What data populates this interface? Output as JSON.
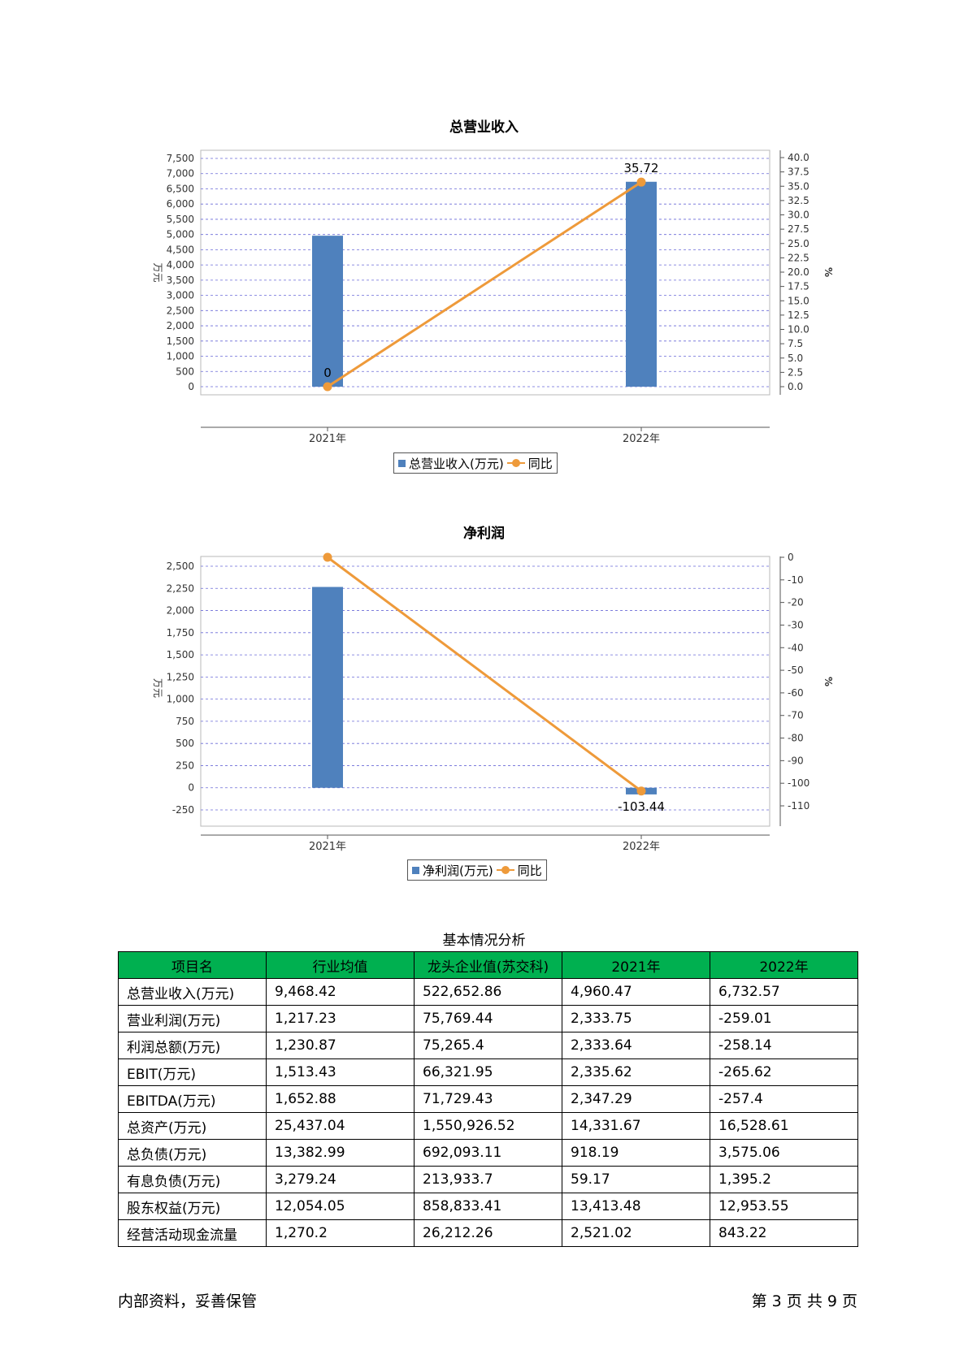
{
  "charts": [
    {
      "title": "总营业收入",
      "legend_bar": "总营业收入(万元)",
      "legend_line": "同比"
    },
    {
      "title": "净利润",
      "legend_bar": "净利润(万元)",
      "legend_line": "同比"
    }
  ],
  "chart_data": [
    {
      "type": "bar",
      "title": "总营业收入",
      "categories": [
        "2021年",
        "2022年"
      ],
      "ylabel": "万元",
      "y2label": "%",
      "ylim": [
        0,
        7500
      ],
      "y_ticks": [
        0,
        500,
        1000,
        1500,
        2000,
        2500,
        3000,
        3500,
        4000,
        4500,
        5000,
        5500,
        6000,
        6500,
        7000,
        7500
      ],
      "y_tick_labels": [
        "0",
        "500",
        "1,000",
        "1,500",
        "2,000",
        "2,500",
        "3,000",
        "3,500",
        "4,000",
        "4,500",
        "5,000",
        "5,500",
        "6,000",
        "6,500",
        "7,000",
        "7,500"
      ],
      "y2lim": [
        0,
        40
      ],
      "y2_ticks": [
        0,
        2.5,
        5,
        7.5,
        10,
        12.5,
        15,
        17.5,
        20,
        22.5,
        25,
        27.5,
        30,
        32.5,
        35,
        37.5,
        40
      ],
      "y2_tick_labels": [
        "0.0",
        "2.5",
        "5.0",
        "7.5",
        "10.0",
        "12.5",
        "15.0",
        "17.5",
        "20.0",
        "22.5",
        "25.0",
        "27.5",
        "30.0",
        "32.5",
        "35.0",
        "37.5",
        "40.0"
      ],
      "grid": true,
      "legend": "bottom",
      "series": [
        {
          "name": "总营业收入(万元)",
          "type": "bar",
          "axis": "left",
          "values": [
            4960.47,
            6732.57
          ],
          "color": "#4f81bd"
        },
        {
          "name": "同比",
          "type": "line",
          "axis": "right",
          "values": [
            0,
            35.72
          ],
          "labels": [
            "0",
            "35.72"
          ],
          "color": "#ee9a3a"
        }
      ]
    },
    {
      "type": "bar",
      "title": "净利润",
      "categories": [
        "2021年",
        "2022年"
      ],
      "ylabel": "万元",
      "y2label": "%",
      "ylim": [
        -250,
        2500
      ],
      "y_ticks": [
        -250,
        0,
        250,
        500,
        750,
        1000,
        1250,
        1500,
        1750,
        2000,
        2250,
        2500
      ],
      "y_tick_labels": [
        "-250",
        "0",
        "250",
        "500",
        "750",
        "1,000",
        "1,250",
        "1,500",
        "1,750",
        "2,000",
        "2,250",
        "2,500"
      ],
      "y2lim": [
        -110,
        0
      ],
      "y2_ticks": [
        0,
        -10,
        -20,
        -30,
        -40,
        -50,
        -60,
        -70,
        -80,
        -90,
        -100,
        -110
      ],
      "y2_tick_labels": [
        "0",
        "-10",
        "-20",
        "-30",
        "-40",
        "-50",
        "-60",
        "-70",
        "-80",
        "-90",
        "-100",
        "-110"
      ],
      "grid": true,
      "legend": "bottom",
      "series": [
        {
          "name": "净利润(万元)",
          "type": "bar",
          "axis": "left",
          "values": [
            2266,
            -75
          ],
          "color": "#4f81bd"
        },
        {
          "name": "同比",
          "type": "line",
          "axis": "right",
          "values": [
            0,
            -103.44
          ],
          "labels": [
            "",
            "-103.44"
          ],
          "color": "#ee9a3a"
        }
      ]
    }
  ],
  "table": {
    "title": "基本情况分析",
    "headers": [
      "项目名",
      "行业均值",
      "龙头企业值(苏交科)",
      "2021年",
      "2022年"
    ],
    "rows": [
      [
        "总营业收入(万元)",
        "9,468.42",
        "522,652.86",
        "4,960.47",
        "6,732.57"
      ],
      [
        "营业利润(万元)",
        "1,217.23",
        "75,769.44",
        "2,333.75",
        "-259.01"
      ],
      [
        "利润总额(万元)",
        "1,230.87",
        "75,265.4",
        "2,333.64",
        "-258.14"
      ],
      [
        "EBIT(万元)",
        "1,513.43",
        "66,321.95",
        "2,335.62",
        "-265.62"
      ],
      [
        "EBITDA(万元)",
        "1,652.88",
        "71,729.43",
        "2,347.29",
        "-257.4"
      ],
      [
        "总资产(万元)",
        "25,437.04",
        "1,550,926.52",
        "14,331.67",
        "16,528.61"
      ],
      [
        "总负债(万元)",
        "13,382.99",
        "692,093.11",
        "918.19",
        "3,575.06"
      ],
      [
        "有息负债(万元)",
        "3,279.24",
        "213,933.7",
        "59.17",
        "1,395.2"
      ],
      [
        "股东权益(万元)",
        "12,054.05",
        "858,833.41",
        "13,413.48",
        "12,953.55"
      ],
      [
        "经营活动现金流量",
        "1,270.2",
        "26,212.26",
        "2,521.02",
        "843.22"
      ]
    ]
  },
  "footer": {
    "left": "内部资料，妥善保管",
    "right": "第 3 页   共 9 页"
  }
}
